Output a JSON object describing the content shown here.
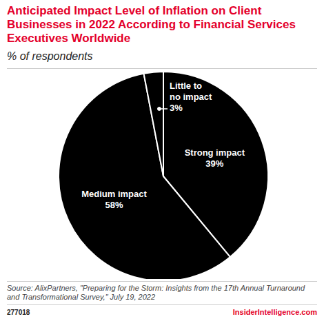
{
  "chart_data": {
    "type": "pie",
    "title": "Anticipated Impact Level of Inflation on Client Businesses in 2022 According to Financial Services Executives Worldwide",
    "subtitle": "% of respondents",
    "categories": [
      "Strong impact",
      "Medium impact",
      "Little to no impact"
    ],
    "values": [
      39,
      58,
      3
    ],
    "value_labels": [
      "39%",
      "58%",
      "3%"
    ],
    "color": "#000000",
    "data_labels": true,
    "source": "Source: AlixPartners, \"Preparing for the Storm: Insights from the 17th Annual Turnaround and Transformational Survey,\" July 19, 2022",
    "chart_id": "277018",
    "brand": "InsiderIntelligence.com"
  }
}
